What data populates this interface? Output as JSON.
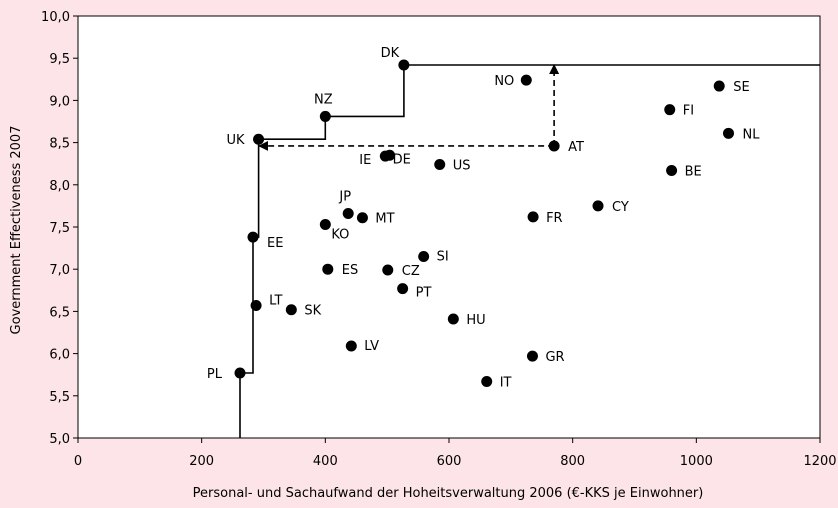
{
  "chart_data": {
    "type": "scatter",
    "title": "",
    "xlabel": "Personal- und Sachaufwand der Hoheitsverwaltung 2006 (€-KKS je Einwohner)",
    "ylabel": "Government Effectiveness 2007",
    "xlim": [
      0,
      1200
    ],
    "ylim": [
      5.0,
      10.0
    ],
    "x_ticks": [
      "0",
      "200",
      "400",
      "600",
      "800",
      "1000",
      "1200"
    ],
    "y_ticks": [
      "5,0",
      "5,5",
      "6,0",
      "6,5",
      "7,0",
      "7,5",
      "8,0",
      "8,5",
      "9,0",
      "9,5",
      "10,0"
    ],
    "grid": false,
    "points": [
      {
        "label": "DK",
        "x": 527,
        "y": 9.42
      },
      {
        "label": "NO",
        "x": 725,
        "y": 9.24
      },
      {
        "label": "SE",
        "x": 1037,
        "y": 9.17
      },
      {
        "label": "FI",
        "x": 957,
        "y": 8.89
      },
      {
        "label": "NZ",
        "x": 400,
        "y": 8.81
      },
      {
        "label": "NL",
        "x": 1052,
        "y": 8.61
      },
      {
        "label": "UK",
        "x": 292,
        "y": 8.54
      },
      {
        "label": "AT",
        "x": 770,
        "y": 8.46
      },
      {
        "label": "IE",
        "x": 497,
        "y": 8.34
      },
      {
        "label": "DE",
        "x": 504,
        "y": 8.35
      },
      {
        "label": "US",
        "x": 585,
        "y": 8.24
      },
      {
        "label": "BE",
        "x": 960,
        "y": 8.17
      },
      {
        "label": "CY",
        "x": 841,
        "y": 7.75
      },
      {
        "label": "JP",
        "x": 437,
        "y": 7.66
      },
      {
        "label": "MT",
        "x": 460,
        "y": 7.61
      },
      {
        "label": "FR",
        "x": 736,
        "y": 7.62
      },
      {
        "label": "KO",
        "x": 400,
        "y": 7.53
      },
      {
        "label": "EE",
        "x": 283,
        "y": 7.38
      },
      {
        "label": "SI",
        "x": 559,
        "y": 7.15
      },
      {
        "label": "ES",
        "x": 404,
        "y": 7.0
      },
      {
        "label": "CZ",
        "x": 501,
        "y": 6.99
      },
      {
        "label": "PT",
        "x": 525,
        "y": 6.77
      },
      {
        "label": "LT",
        "x": 288,
        "y": 6.57
      },
      {
        "label": "SK",
        "x": 345,
        "y": 6.52
      },
      {
        "label": "HU",
        "x": 607,
        "y": 6.41
      },
      {
        "label": "LV",
        "x": 442,
        "y": 6.09
      },
      {
        "label": "GR",
        "x": 735,
        "y": 5.97
      },
      {
        "label": "PL",
        "x": 262,
        "y": 5.77
      },
      {
        "label": "IT",
        "x": 661,
        "y": 5.67
      }
    ],
    "frontier": [
      [
        262,
        5.0
      ],
      [
        262,
        5.77
      ],
      [
        283,
        5.77
      ],
      [
        283,
        7.38
      ],
      [
        292,
        7.38
      ],
      [
        292,
        8.54
      ],
      [
        400,
        8.54
      ],
      [
        400,
        8.81
      ],
      [
        527,
        8.81
      ],
      [
        527,
        9.42
      ],
      [
        1200,
        9.42
      ]
    ],
    "annotations": [
      {
        "kind": "dashed-arrow",
        "from": [
          770,
          8.46
        ],
        "to": [
          293,
          8.46
        ]
      },
      {
        "kind": "dashed-arrow",
        "from": [
          770,
          8.46
        ],
        "to": [
          770,
          9.42
        ]
      }
    ]
  }
}
